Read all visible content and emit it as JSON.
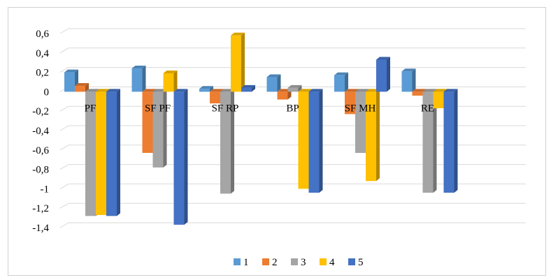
{
  "chart_data": {
    "type": "bar",
    "title": "",
    "xlabel": "",
    "ylabel": "",
    "categories": [
      "PF",
      "SF PF",
      "SF RP",
      "BP",
      "SF MH",
      "RE"
    ],
    "ylim": [
      -1.4,
      0.6
    ],
    "yticks": [
      0.6,
      0.4,
      0.2,
      0,
      -0.2,
      -0.4,
      -0.6,
      -0.8,
      -1,
      -1.2,
      -1.4
    ],
    "ytick_labels": [
      "0,6",
      "0,4",
      "0,2",
      "0",
      "-0,2",
      "-0,4",
      "-0,6",
      "-0,8",
      "-1",
      "-1,2",
      "-1,4"
    ],
    "grid": true,
    "legend_position": "bottom",
    "series": [
      {
        "name": "1",
        "color": "#5b9bd5",
        "values": [
          0.2,
          0.24,
          0.03,
          0.15,
          0.17,
          0.21
        ]
      },
      {
        "name": "2",
        "color": "#ed7d31",
        "values": [
          0.06,
          -0.63,
          -0.12,
          -0.08,
          -0.23,
          -0.04
        ]
      },
      {
        "name": "3",
        "color": "#a5a5a5",
        "values": [
          -1.28,
          -0.78,
          -1.05,
          0.04,
          -0.63,
          -1.04
        ]
      },
      {
        "name": "4",
        "color": "#ffc000",
        "values": [
          -1.27,
          0.19,
          0.58,
          -1.0,
          -0.92,
          -0.17
        ]
      },
      {
        "name": "5",
        "color": "#4472c4",
        "values": [
          -1.28,
          -1.37,
          0.04,
          -1.04,
          0.33,
          -1.04
        ]
      }
    ]
  }
}
